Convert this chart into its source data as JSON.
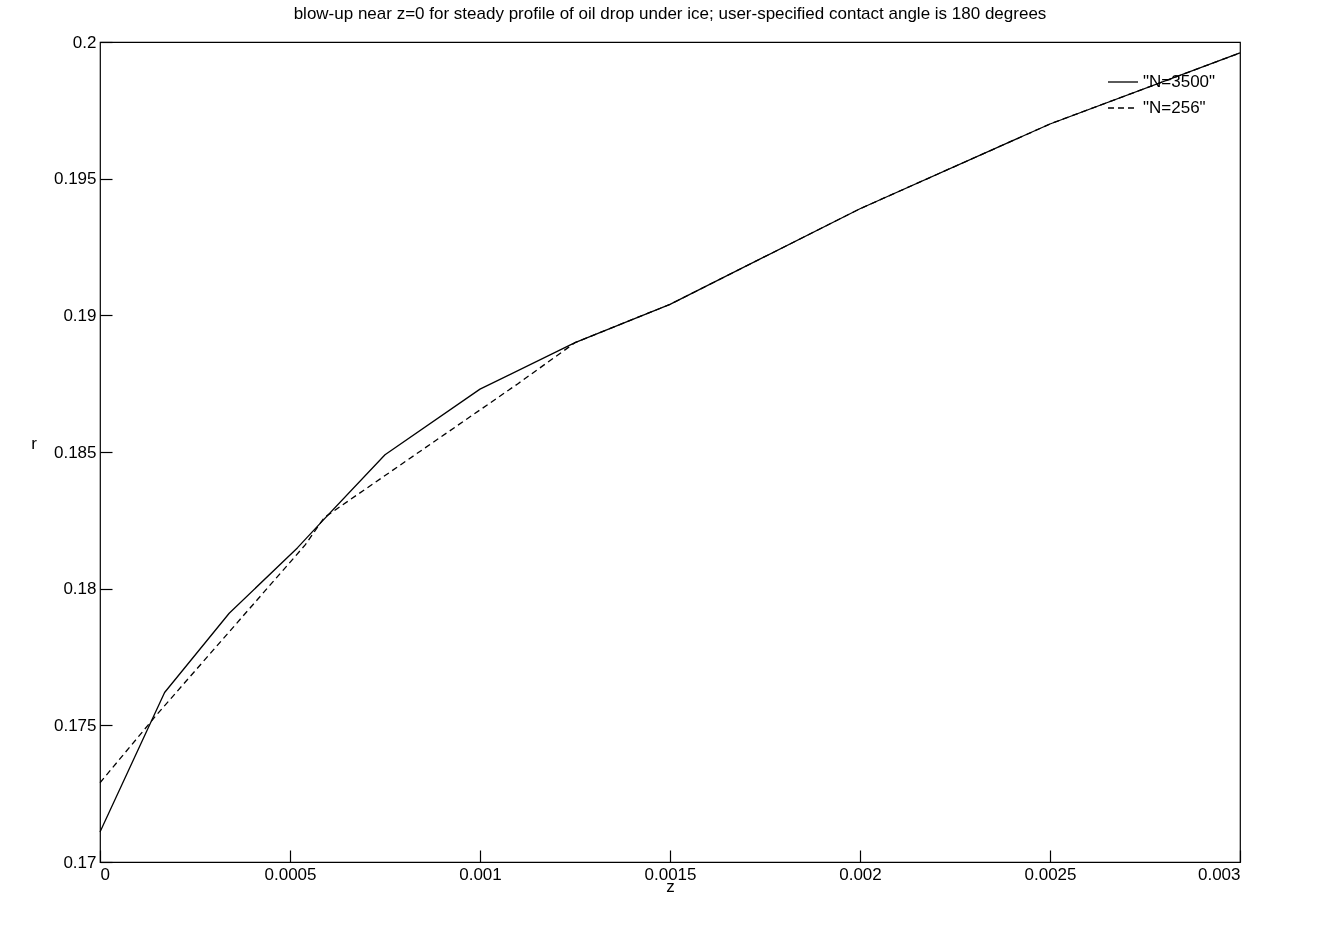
{
  "chart_data": {
    "type": "line",
    "title": "blow-up near z=0 for steady profile of oil drop under ice; user-specified contact angle is 180 degrees",
    "xlabel": "z",
    "ylabel": "r",
    "xlim": [
      0,
      0.003
    ],
    "ylim": [
      0.17,
      0.2
    ],
    "xticks": [
      0,
      0.0005,
      0.001,
      0.0015,
      0.002,
      0.0025,
      0.003
    ],
    "yticks": [
      0.17,
      0.175,
      0.18,
      0.185,
      0.19,
      0.195,
      0.2
    ],
    "grid": false,
    "legend": "top right",
    "marker": "none",
    "series": [
      {
        "name": "\"N=3500\"",
        "color": "#000000",
        "line_style": "solid",
        "x": [
          0,
          0.00017,
          0.00034,
          0.00052,
          0.00058,
          0.00075,
          0.001,
          0.00125,
          0.0015,
          0.002,
          0.0025,
          0.003
        ],
        "values": [
          0.1711,
          0.1762,
          0.1791,
          0.1815,
          0.1824,
          0.1849,
          0.1873,
          0.189,
          0.1904,
          0.1939,
          0.197,
          0.1996
        ]
      },
      {
        "name": "\"N=256\"",
        "color": "#000000",
        "line_style": "dashed",
        "x": [
          0,
          0.00015,
          0.00054,
          0.00059,
          0.0011,
          0.00125,
          0.0015,
          0.002,
          0.0025,
          0.003
        ],
        "values": [
          0.1729,
          0.1754,
          0.1816,
          0.1826,
          0.1875,
          0.189,
          0.1904,
          0.1939,
          0.197,
          0.1996
        ]
      }
    ]
  }
}
